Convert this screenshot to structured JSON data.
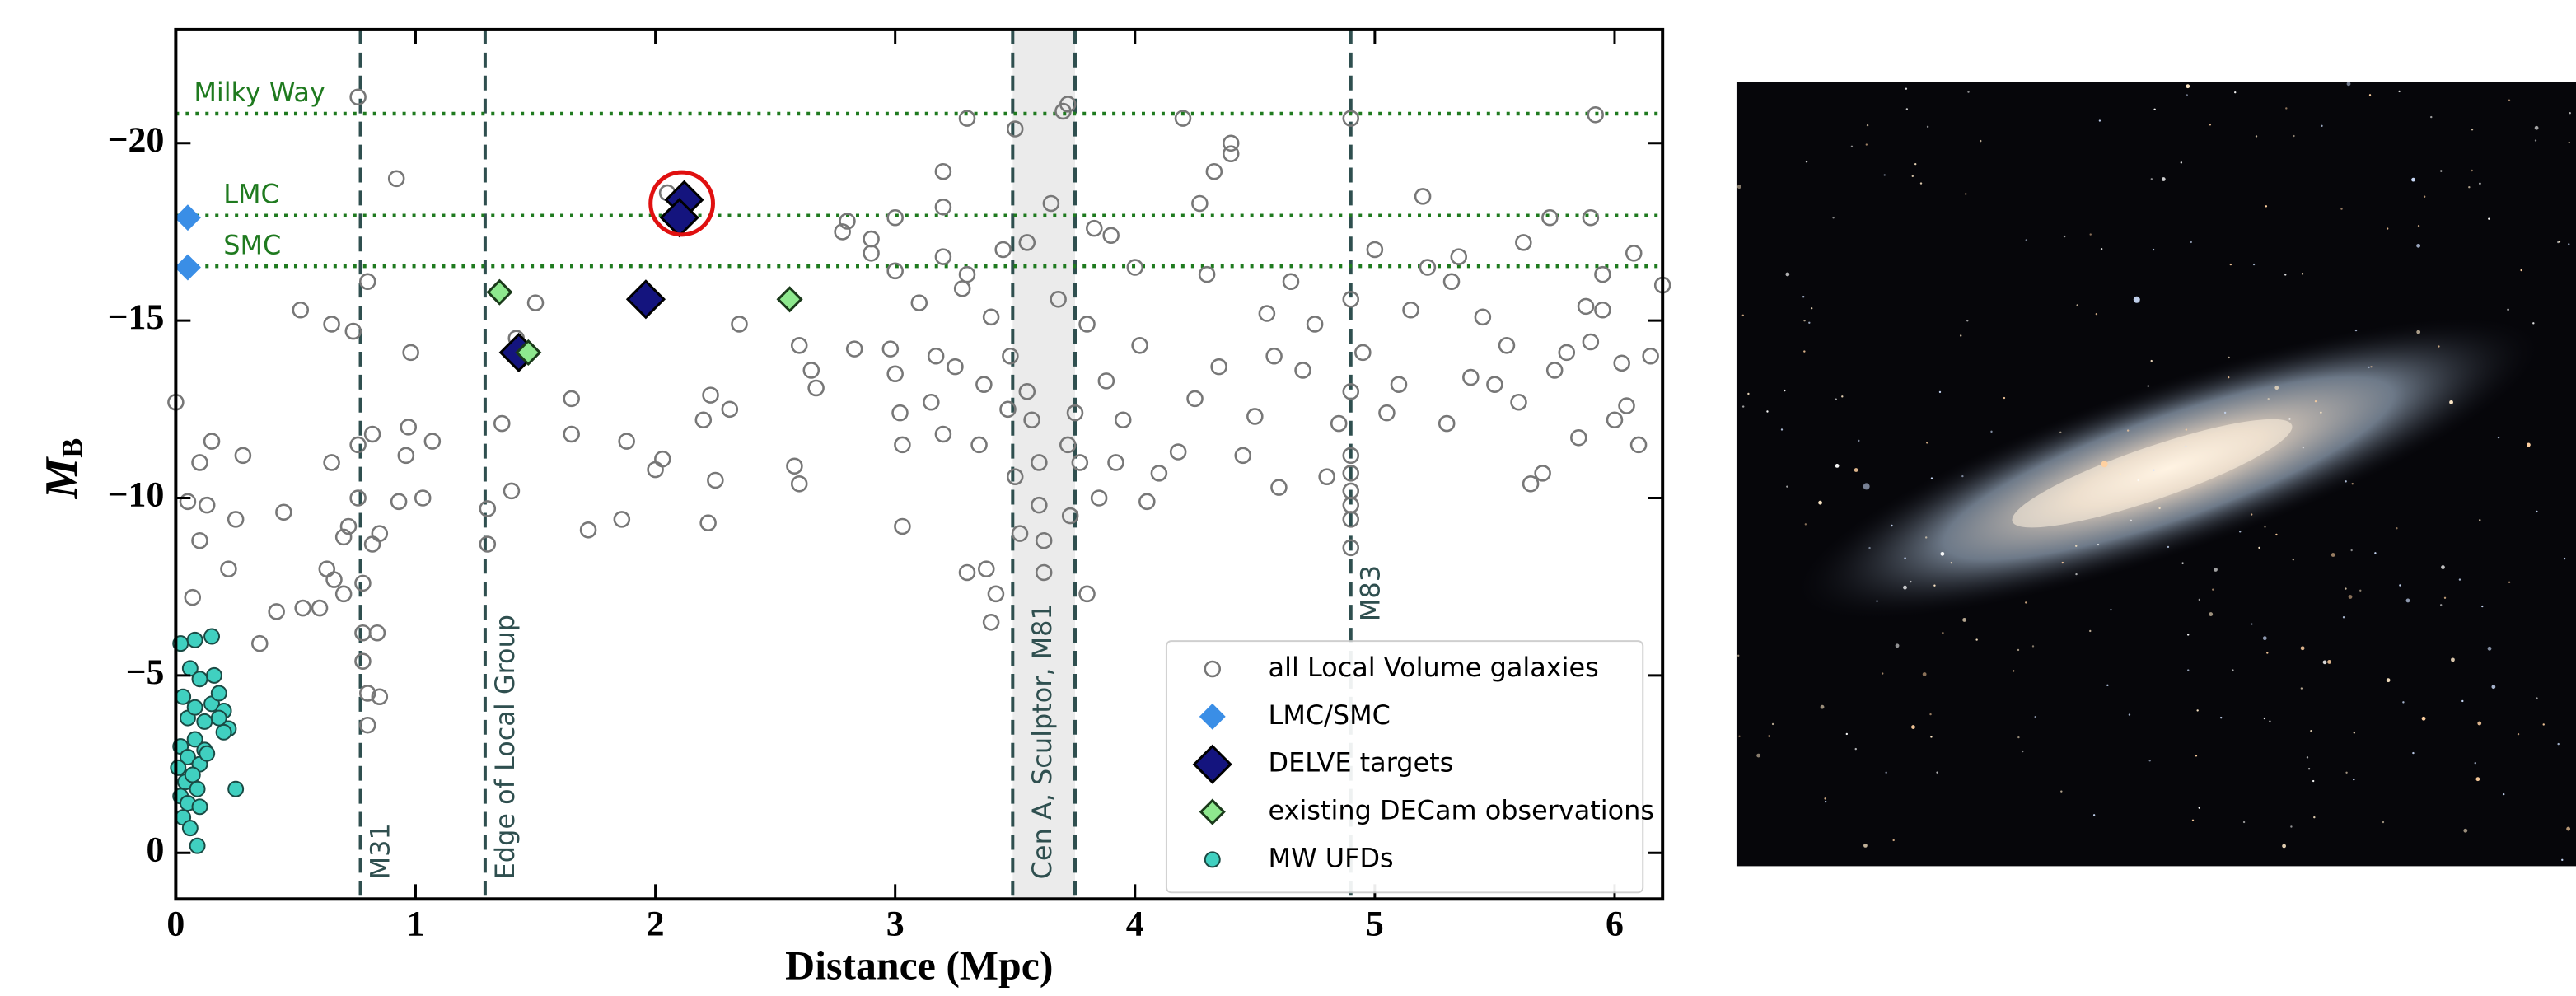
{
  "chart_data": {
    "type": "scatter",
    "x_label": "Distance (Mpc)",
    "y_label": {
      "main": "M",
      "sub": "B"
    },
    "xlim": [
      0,
      6.2
    ],
    "ylim": [
      1.3,
      -23.2
    ],
    "xticks": [
      0,
      1,
      2,
      3,
      4,
      5,
      6
    ],
    "yticks": [
      {
        "value": -20,
        "label": "−20"
      },
      {
        "value": -15,
        "label": "−15"
      },
      {
        "value": -10,
        "label": "−10"
      },
      {
        "value": -5,
        "label": "−5"
      },
      0
    ],
    "legend": "lower right",
    "hlines": [
      {
        "label": "Milky Way",
        "y": -20.83,
        "color": "#1f7a1f"
      },
      {
        "label": "LMC",
        "y": -17.96,
        "color": "#1f7a1f"
      },
      {
        "label": "SMC",
        "y": -16.53,
        "color": "#1f7a1f"
      }
    ],
    "vlines": [
      {
        "label": "M31",
        "x": 0.77,
        "color": "#2f4f4f"
      },
      {
        "label": "Edge of Local Group",
        "x": 1.29,
        "color": "#2f4f4f"
      },
      {
        "label": "M83",
        "x": 4.9,
        "color": "#2f4f4f"
      }
    ],
    "band": {
      "label": "Cen A, Sculptor, M81",
      "x": [
        3.49,
        3.75
      ],
      "color": "#2f4f4f"
    },
    "highlight": {
      "x": 2.11,
      "y": -18.3,
      "color": "#e01010"
    },
    "series": [
      {
        "name": "all Local Volume galaxies",
        "color": "#777777",
        "marker": "circle-open",
        "size": 4.5,
        "x": [
          0.0,
          0.05,
          0.1,
          0.1,
          0.13,
          0.15,
          0.07,
          0.25,
          0.28,
          0.22,
          0.35,
          0.42,
          0.45,
          0.52,
          0.53,
          0.6,
          0.63,
          0.66,
          0.65,
          0.65,
          0.7,
          0.7,
          0.72,
          0.74,
          0.76,
          0.76,
          0.76,
          0.78,
          0.78,
          0.78,
          0.8,
          0.8,
          0.8,
          0.82,
          0.82,
          0.84,
          0.85,
          0.85,
          0.92,
          0.93,
          0.96,
          0.98,
          0.97,
          1.07,
          1.03,
          1.3,
          1.3,
          1.36,
          1.4,
          1.42,
          1.5,
          1.65,
          1.65,
          1.72,
          1.86,
          1.88,
          2.0,
          2.03,
          2.05,
          2.2,
          2.22,
          2.23,
          2.25,
          2.31,
          2.35,
          2.58,
          2.6,
          2.6,
          2.65,
          2.67,
          2.78,
          2.8,
          2.83,
          2.9,
          2.9,
          2.98,
          3.0,
          3.0,
          3.0,
          3.02,
          3.03,
          3.03,
          3.1,
          3.15,
          3.17,
          3.2,
          3.2,
          3.2,
          3.2,
          3.25,
          3.28,
          3.3,
          3.3,
          3.3,
          3.35,
          3.37,
          3.38,
          3.4,
          3.4,
          3.42,
          3.45,
          3.47,
          3.48,
          3.5,
          3.5,
          3.52,
          3.55,
          3.55,
          3.57,
          3.6,
          3.6,
          3.62,
          3.62,
          3.65,
          3.68,
          3.7,
          3.72,
          3.72,
          3.73,
          3.75,
          3.77,
          3.8,
          3.8,
          3.83,
          3.85,
          3.88,
          3.9,
          3.92,
          3.95,
          4.0,
          4.02,
          4.05,
          4.1,
          4.18,
          4.2,
          4.25,
          4.27,
          4.3,
          4.33,
          4.35,
          4.4,
          4.4,
          4.45,
          4.5,
          4.55,
          4.58,
          4.6,
          4.65,
          4.7,
          4.75,
          4.8,
          4.85,
          4.9,
          4.9,
          4.9,
          4.9,
          4.9,
          4.9,
          4.9,
          4.9,
          4.9,
          4.95,
          5.0,
          5.05,
          5.1,
          5.15,
          5.2,
          5.22,
          5.3,
          5.32,
          5.35,
          5.4,
          5.45,
          5.5,
          5.55,
          5.6,
          5.62,
          5.65,
          5.7,
          5.73,
          5.75,
          5.8,
          5.85,
          5.88,
          5.9,
          5.9,
          5.92,
          5.95,
          5.95,
          6.0,
          6.03,
          6.05,
          6.08,
          6.1,
          6.15,
          6.2
        ],
        "values": [
          -12.7,
          -9.9,
          -8.8,
          -11.0,
          -9.8,
          -11.6,
          -7.2,
          -9.4,
          -11.2,
          -8.0,
          -5.9,
          -6.8,
          -9.6,
          -15.3,
          -6.9,
          -6.9,
          -8.0,
          -7.7,
          -11.0,
          -14.9,
          -8.9,
          -7.3,
          -9.2,
          -14.7,
          -21.3,
          -11.5,
          -10.0,
          -7.6,
          -6.2,
          -5.4,
          -4.5,
          -3.6,
          -16.1,
          -11.8,
          -8.7,
          -6.2,
          -4.4,
          -9.0,
          -19.0,
          -9.9,
          -11.2,
          -14.1,
          -12.0,
          -11.6,
          -10.0,
          -9.7,
          -8.7,
          -12.1,
          -10.2,
          -14.5,
          -15.5,
          -11.8,
          -12.8,
          -9.1,
          -9.4,
          -11.6,
          -10.8,
          -11.1,
          -18.6,
          -12.2,
          -9.3,
          -12.9,
          -10.5,
          -12.5,
          -14.9,
          -10.9,
          -10.4,
          -14.3,
          -13.6,
          -13.1,
          -17.5,
          -17.8,
          -14.2,
          -17.3,
          -16.9,
          -14.2,
          -17.9,
          -16.4,
          -13.5,
          -12.4,
          -11.5,
          -9.2,
          -15.5,
          -12.7,
          -14.0,
          -11.8,
          -16.8,
          -18.2,
          -19.2,
          -13.7,
          -15.9,
          -16.3,
          -20.7,
          -7.9,
          -11.5,
          -13.2,
          -8.0,
          -15.1,
          -6.5,
          -7.3,
          -17.0,
          -12.5,
          -14.0,
          -10.6,
          -20.4,
          -9.0,
          -13.0,
          -17.2,
          -12.2,
          -11.0,
          -9.8,
          -8.8,
          -7.9,
          -18.3,
          -15.6,
          -20.9,
          -21.1,
          -11.5,
          -9.5,
          -12.4,
          -11.0,
          -14.9,
          -7.3,
          -17.6,
          -10.0,
          -13.3,
          -17.4,
          -11.0,
          -12.2,
          -16.5,
          -14.3,
          -9.9,
          -10.7,
          -11.3,
          -20.7,
          -12.8,
          -18.3,
          -16.3,
          -19.2,
          -13.7,
          -20.0,
          -19.7,
          -11.2,
          -12.3,
          -15.2,
          -14.0,
          -10.3,
          -16.1,
          -13.6,
          -14.9,
          -10.6,
          -12.1,
          -20.7,
          -15.6,
          -13.0,
          -11.2,
          -10.7,
          -10.2,
          -9.8,
          -9.4,
          -8.6,
          -14.1,
          -17.0,
          -12.4,
          -13.2,
          -15.3,
          -18.5,
          -16.5,
          -12.1,
          -16.1,
          -16.8,
          -13.4,
          -15.1,
          -13.2,
          -14.3,
          -12.7,
          -17.2,
          -10.4,
          -10.7,
          -17.9,
          -13.6,
          -14.1,
          -11.7,
          -15.4,
          -14.4,
          -17.9,
          -20.8,
          -15.3,
          -16.3,
          -12.2,
          -13.8,
          -12.6,
          -16.9,
          -11.5,
          -14.0,
          -16.0
        ]
      },
      {
        "name": "LMC/SMC",
        "color": "#3a8ee6",
        "marker": "diamond",
        "size": 8,
        "x": [
          0.05,
          0.05
        ],
        "values": [
          -17.9,
          -16.5
        ]
      },
      {
        "name": "DELVE targets",
        "color": "#14147e",
        "edgecolor": "#000000",
        "marker": "diamond",
        "size": 11,
        "x": [
          2.12,
          2.1,
          1.96,
          1.43
        ],
        "values": [
          -18.4,
          -17.9,
          -15.6,
          -14.1
        ]
      },
      {
        "name": "existing DECam observations",
        "color": "#8ee88e",
        "edgecolor": "#1a3a1a",
        "marker": "diamond",
        "size": 7,
        "x": [
          1.35,
          1.47,
          2.56
        ],
        "values": [
          -15.8,
          -14.1,
          -15.6
        ]
      },
      {
        "name": "MW UFDs",
        "color": "#40d0c0",
        "edgecolor": "#1a4a44",
        "marker": "circle",
        "size": 4.5,
        "x": [
          0.02,
          0.06,
          0.08,
          0.1,
          0.15,
          0.03,
          0.05,
          0.08,
          0.12,
          0.15,
          0.18,
          0.2,
          0.22,
          0.18,
          0.02,
          0.05,
          0.08,
          0.1,
          0.12,
          0.04,
          0.07,
          0.02,
          0.05,
          0.09,
          0.03,
          0.06,
          0.1,
          0.25,
          0.09,
          0.01,
          0.13,
          0.16,
          0.2
        ],
        "values": [
          -5.9,
          -5.2,
          -6.0,
          -4.9,
          -6.1,
          -4.4,
          -3.8,
          -4.1,
          -3.7,
          -4.2,
          -4.5,
          -4.0,
          -3.5,
          -3.8,
          -3.0,
          -2.7,
          -3.2,
          -2.5,
          -2.9,
          -2.0,
          -2.2,
          -1.6,
          -1.4,
          -1.8,
          -1.0,
          -0.7,
          -1.3,
          -1.8,
          -0.2,
          -2.4,
          -2.8,
          -5.0,
          -3.4
        ]
      }
    ]
  }
}
